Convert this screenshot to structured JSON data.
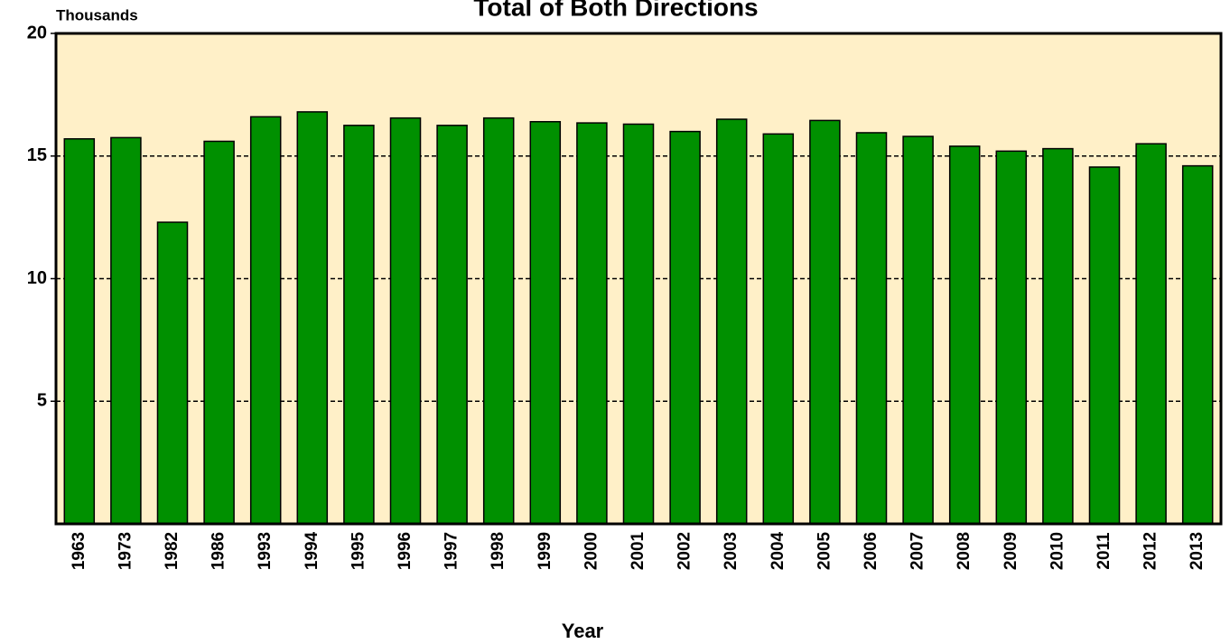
{
  "chart_data": {
    "type": "bar",
    "title": "Total of Both Directions",
    "y_unit_label": "Thousands",
    "x_label": "Year",
    "categories": [
      "1963",
      "1973",
      "1982",
      "1986",
      "1993",
      "1994",
      "1995",
      "1996",
      "1997",
      "1998",
      "1999",
      "2000",
      "2001",
      "2002",
      "2003",
      "2004",
      "2005",
      "2006",
      "2007",
      "2008",
      "2009",
      "2010",
      "2011",
      "2012",
      "2013"
    ],
    "values": [
      15.7,
      15.75,
      12.3,
      15.6,
      16.6,
      16.8,
      16.25,
      16.55,
      16.25,
      16.55,
      16.4,
      16.35,
      16.3,
      16.0,
      16.5,
      15.9,
      16.45,
      15.95,
      15.8,
      15.4,
      15.2,
      15.3,
      14.55,
      15.5,
      14.6
    ],
    "color": "#009000",
    "ylim": [
      0,
      20
    ],
    "yticks": [
      5,
      10,
      15,
      20
    ],
    "grid": true
  }
}
